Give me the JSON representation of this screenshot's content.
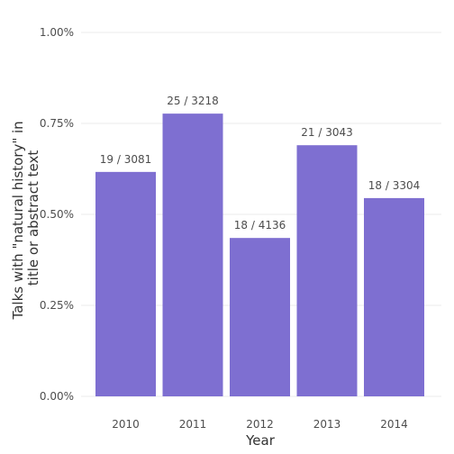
{
  "chart_data": {
    "type": "bar",
    "categories": [
      "2010",
      "2011",
      "2012",
      "2013",
      "2014"
    ],
    "values": [
      0.6167,
      0.7769,
      0.4352,
      0.6901,
      0.5448
    ],
    "value_format": "percent",
    "data_labels": [
      "19 / 3081",
      "25 / 3218",
      "18 / 4136",
      "21 / 3043",
      "18 / 3304"
    ],
    "xlabel": "Year",
    "ylabel_lines": [
      "Talks with \"natural history\" in",
      "title or abstract text"
    ],
    "ylim": [
      0,
      1.0
    ],
    "yticks": [
      0,
      0.25,
      0.5,
      0.75,
      1.0
    ],
    "ytick_labels": [
      "0.00%",
      "0.25%",
      "0.50%",
      "0.75%",
      "1.00%"
    ],
    "grid": true,
    "legend": "none",
    "bar_color": "#7e6fd1"
  }
}
